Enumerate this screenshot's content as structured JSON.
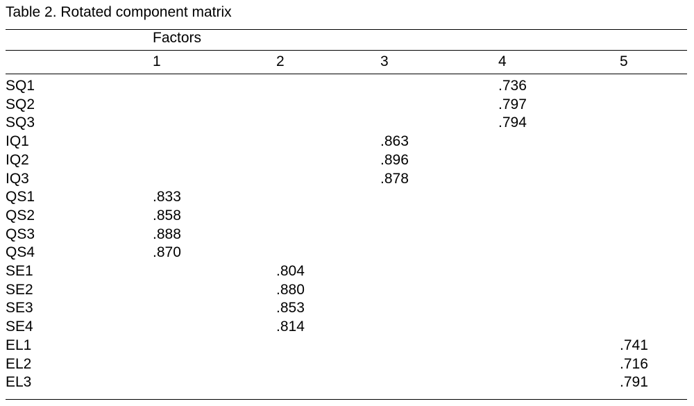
{
  "table": {
    "title": "Table 2. Rotated component matrix",
    "group_header": "Factors",
    "columns": [
      "1",
      "2",
      "3",
      "4",
      "5"
    ],
    "rows": [
      {
        "label": "SQ1",
        "values": [
          null,
          null,
          null,
          ".736",
          null
        ]
      },
      {
        "label": "SQ2",
        "values": [
          null,
          null,
          null,
          ".797",
          null
        ]
      },
      {
        "label": "SQ3",
        "values": [
          null,
          null,
          null,
          ".794",
          null
        ]
      },
      {
        "label": "IQ1",
        "values": [
          null,
          null,
          ".863",
          null,
          null
        ]
      },
      {
        "label": "IQ2",
        "values": [
          null,
          null,
          ".896",
          null,
          null
        ]
      },
      {
        "label": "IQ3",
        "values": [
          null,
          null,
          ".878",
          null,
          null
        ]
      },
      {
        "label": "QS1",
        "values": [
          ".833",
          null,
          null,
          null,
          null
        ]
      },
      {
        "label": "QS2",
        "values": [
          ".858",
          null,
          null,
          null,
          null
        ]
      },
      {
        "label": "QS3",
        "values": [
          ".888",
          null,
          null,
          null,
          null
        ]
      },
      {
        "label": "QS4",
        "values": [
          ".870",
          null,
          null,
          null,
          null
        ]
      },
      {
        "label": "SE1",
        "values": [
          null,
          ".804",
          null,
          null,
          null
        ]
      },
      {
        "label": "SE2",
        "values": [
          null,
          ".880",
          null,
          null,
          null
        ]
      },
      {
        "label": "SE3",
        "values": [
          null,
          ".853",
          null,
          null,
          null
        ]
      },
      {
        "label": "SE4",
        "values": [
          null,
          ".814",
          null,
          null,
          null
        ]
      },
      {
        "label": "EL1",
        "values": [
          null,
          null,
          null,
          null,
          ".741"
        ]
      },
      {
        "label": "EL2",
        "values": [
          null,
          null,
          null,
          null,
          ".716"
        ]
      },
      {
        "label": "EL3",
        "values": [
          null,
          null,
          null,
          null,
          ".791"
        ]
      }
    ]
  }
}
